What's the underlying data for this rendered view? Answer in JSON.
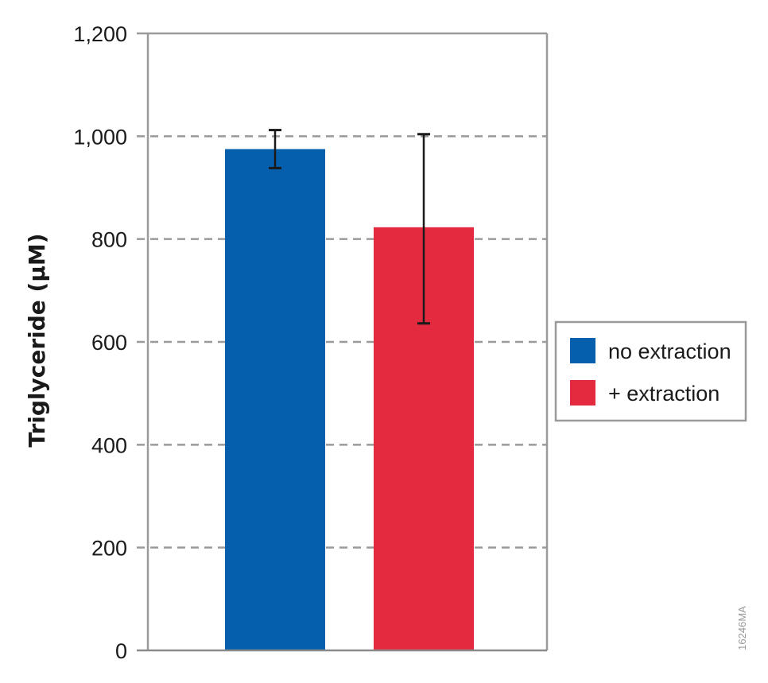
{
  "chart_data": {
    "type": "bar",
    "categories": [
      "no extraction",
      "+ extraction"
    ],
    "values": [
      975,
      823
    ],
    "error_low": [
      938,
      636
    ],
    "error_high": [
      1012,
      1004
    ],
    "ylabel": "Triglyceride (µM)",
    "xlabel": "",
    "ylim": [
      0,
      1200
    ],
    "yticks": [
      0,
      200,
      400,
      600,
      800,
      1000,
      1200
    ],
    "ytick_labels": [
      "0",
      "200",
      "400",
      "600",
      "800",
      "1,000",
      "1,200"
    ],
    "grid": "dashed horizontal",
    "legend": {
      "placement": "right",
      "entries": [
        {
          "label": "no extraction",
          "color": "#065fac"
        },
        {
          "label": "+ extraction",
          "color": "#e42a3f"
        }
      ]
    },
    "colors": [
      "#065fac",
      "#e42a3f"
    ],
    "figure_id": "16246MA"
  }
}
